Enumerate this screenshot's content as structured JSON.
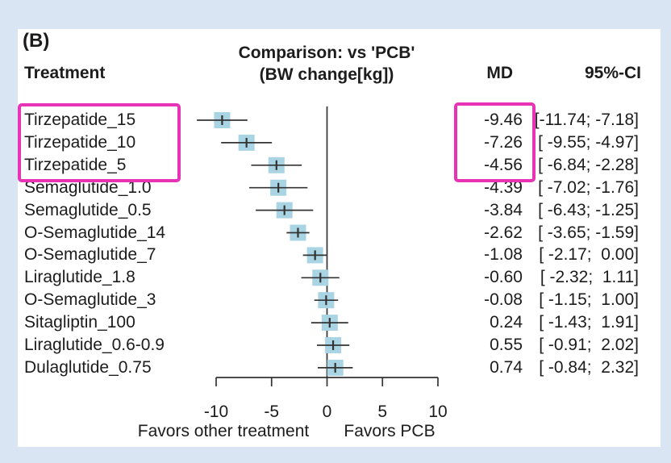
{
  "panel_label": "(B)",
  "header": {
    "treatment": "Treatment",
    "md": "MD",
    "ci": "95%-CI"
  },
  "colors": {
    "background": "#d9e5f2",
    "panel": "#ffffff",
    "text": "#1c1c1c",
    "square": "#a9d4e4",
    "line": "#333333",
    "highlight": "#e733b5"
  },
  "chart_data": {
    "type": "forest",
    "title": "Comparison: vs 'PCB'",
    "subtitle": "(BW change[kg])",
    "xlabel_left": "Favors other treatment",
    "xlabel_right": "Favors PCB",
    "xlim": [
      -10,
      10
    ],
    "xticks": [
      -10,
      -5,
      0,
      5,
      10
    ],
    "xtick_labels": [
      "-10",
      "-5",
      "0",
      "5",
      "10"
    ],
    "ref_line": 0,
    "legend_position": "none",
    "grid": false,
    "rows": [
      {
        "treatment": "Tirzepatide_15",
        "md": -9.46,
        "ci_low": -11.74,
        "ci_high": -7.18,
        "md_label": "-9.46",
        "ci_label": "[-11.74; -7.18]",
        "highlighted": true
      },
      {
        "treatment": "Tirzepatide_10",
        "md": -7.26,
        "ci_low": -9.55,
        "ci_high": -4.97,
        "md_label": "-7.26",
        "ci_label": "[ -9.55; -4.97]",
        "highlighted": true
      },
      {
        "treatment": "Tirzepatide_5",
        "md": -4.56,
        "ci_low": -6.84,
        "ci_high": -2.28,
        "md_label": "-4.56",
        "ci_label": "[ -6.84; -2.28]",
        "highlighted": true
      },
      {
        "treatment": "Semaglutide_1.0",
        "md": -4.39,
        "ci_low": -7.02,
        "ci_high": -1.76,
        "md_label": "-4.39",
        "ci_label": "[ -7.02; -1.76]",
        "highlighted": false
      },
      {
        "treatment": "Semaglutide_0.5",
        "md": -3.84,
        "ci_low": -6.43,
        "ci_high": -1.25,
        "md_label": "-3.84",
        "ci_label": "[ -6.43; -1.25]",
        "highlighted": false
      },
      {
        "treatment": "O-Semaglutide_14",
        "md": -2.62,
        "ci_low": -3.65,
        "ci_high": -1.59,
        "md_label": "-2.62",
        "ci_label": "[ -3.65; -1.59]",
        "highlighted": false
      },
      {
        "treatment": "O-Semaglutide_7",
        "md": -1.08,
        "ci_low": -2.17,
        "ci_high": 0.0,
        "md_label": "-1.08",
        "ci_label": "[ -2.17;  0.00]",
        "highlighted": false
      },
      {
        "treatment": "Liraglutide_1.8",
        "md": -0.6,
        "ci_low": -2.32,
        "ci_high": 1.11,
        "md_label": "-0.60",
        "ci_label": "[ -2.32;  1.11]",
        "highlighted": false
      },
      {
        "treatment": "O-Semaglutide_3",
        "md": -0.08,
        "ci_low": -1.15,
        "ci_high": 1.0,
        "md_label": "-0.08",
        "ci_label": "[ -1.15;  1.00]",
        "highlighted": false
      },
      {
        "treatment": "Sitagliptin_100",
        "md": 0.24,
        "ci_low": -1.43,
        "ci_high": 1.91,
        "md_label": "0.24",
        "ci_label": "[ -1.43;  1.91]",
        "highlighted": false
      },
      {
        "treatment": "Liraglutide_0.6-0.9",
        "md": 0.55,
        "ci_low": -0.91,
        "ci_high": 2.02,
        "md_label": "0.55",
        "ci_label": "[ -0.91;  2.02]",
        "highlighted": false
      },
      {
        "treatment": "Dulaglutide_0.75",
        "md": 0.74,
        "ci_low": -0.84,
        "ci_high": 2.32,
        "md_label": "0.74",
        "ci_label": "[ -0.84;  2.32]",
        "highlighted": false
      }
    ]
  },
  "highlights": {
    "note": "magenta boxes around top-3 treatments and their MD values",
    "treatment_rows": [
      0,
      1,
      2
    ]
  }
}
